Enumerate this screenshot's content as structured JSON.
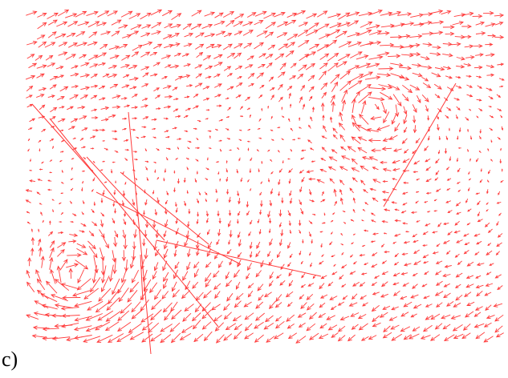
{
  "figure": {
    "panel_label": "c)",
    "arrow_color": "#ff3b3b",
    "background": "#ffffff"
  }
}
